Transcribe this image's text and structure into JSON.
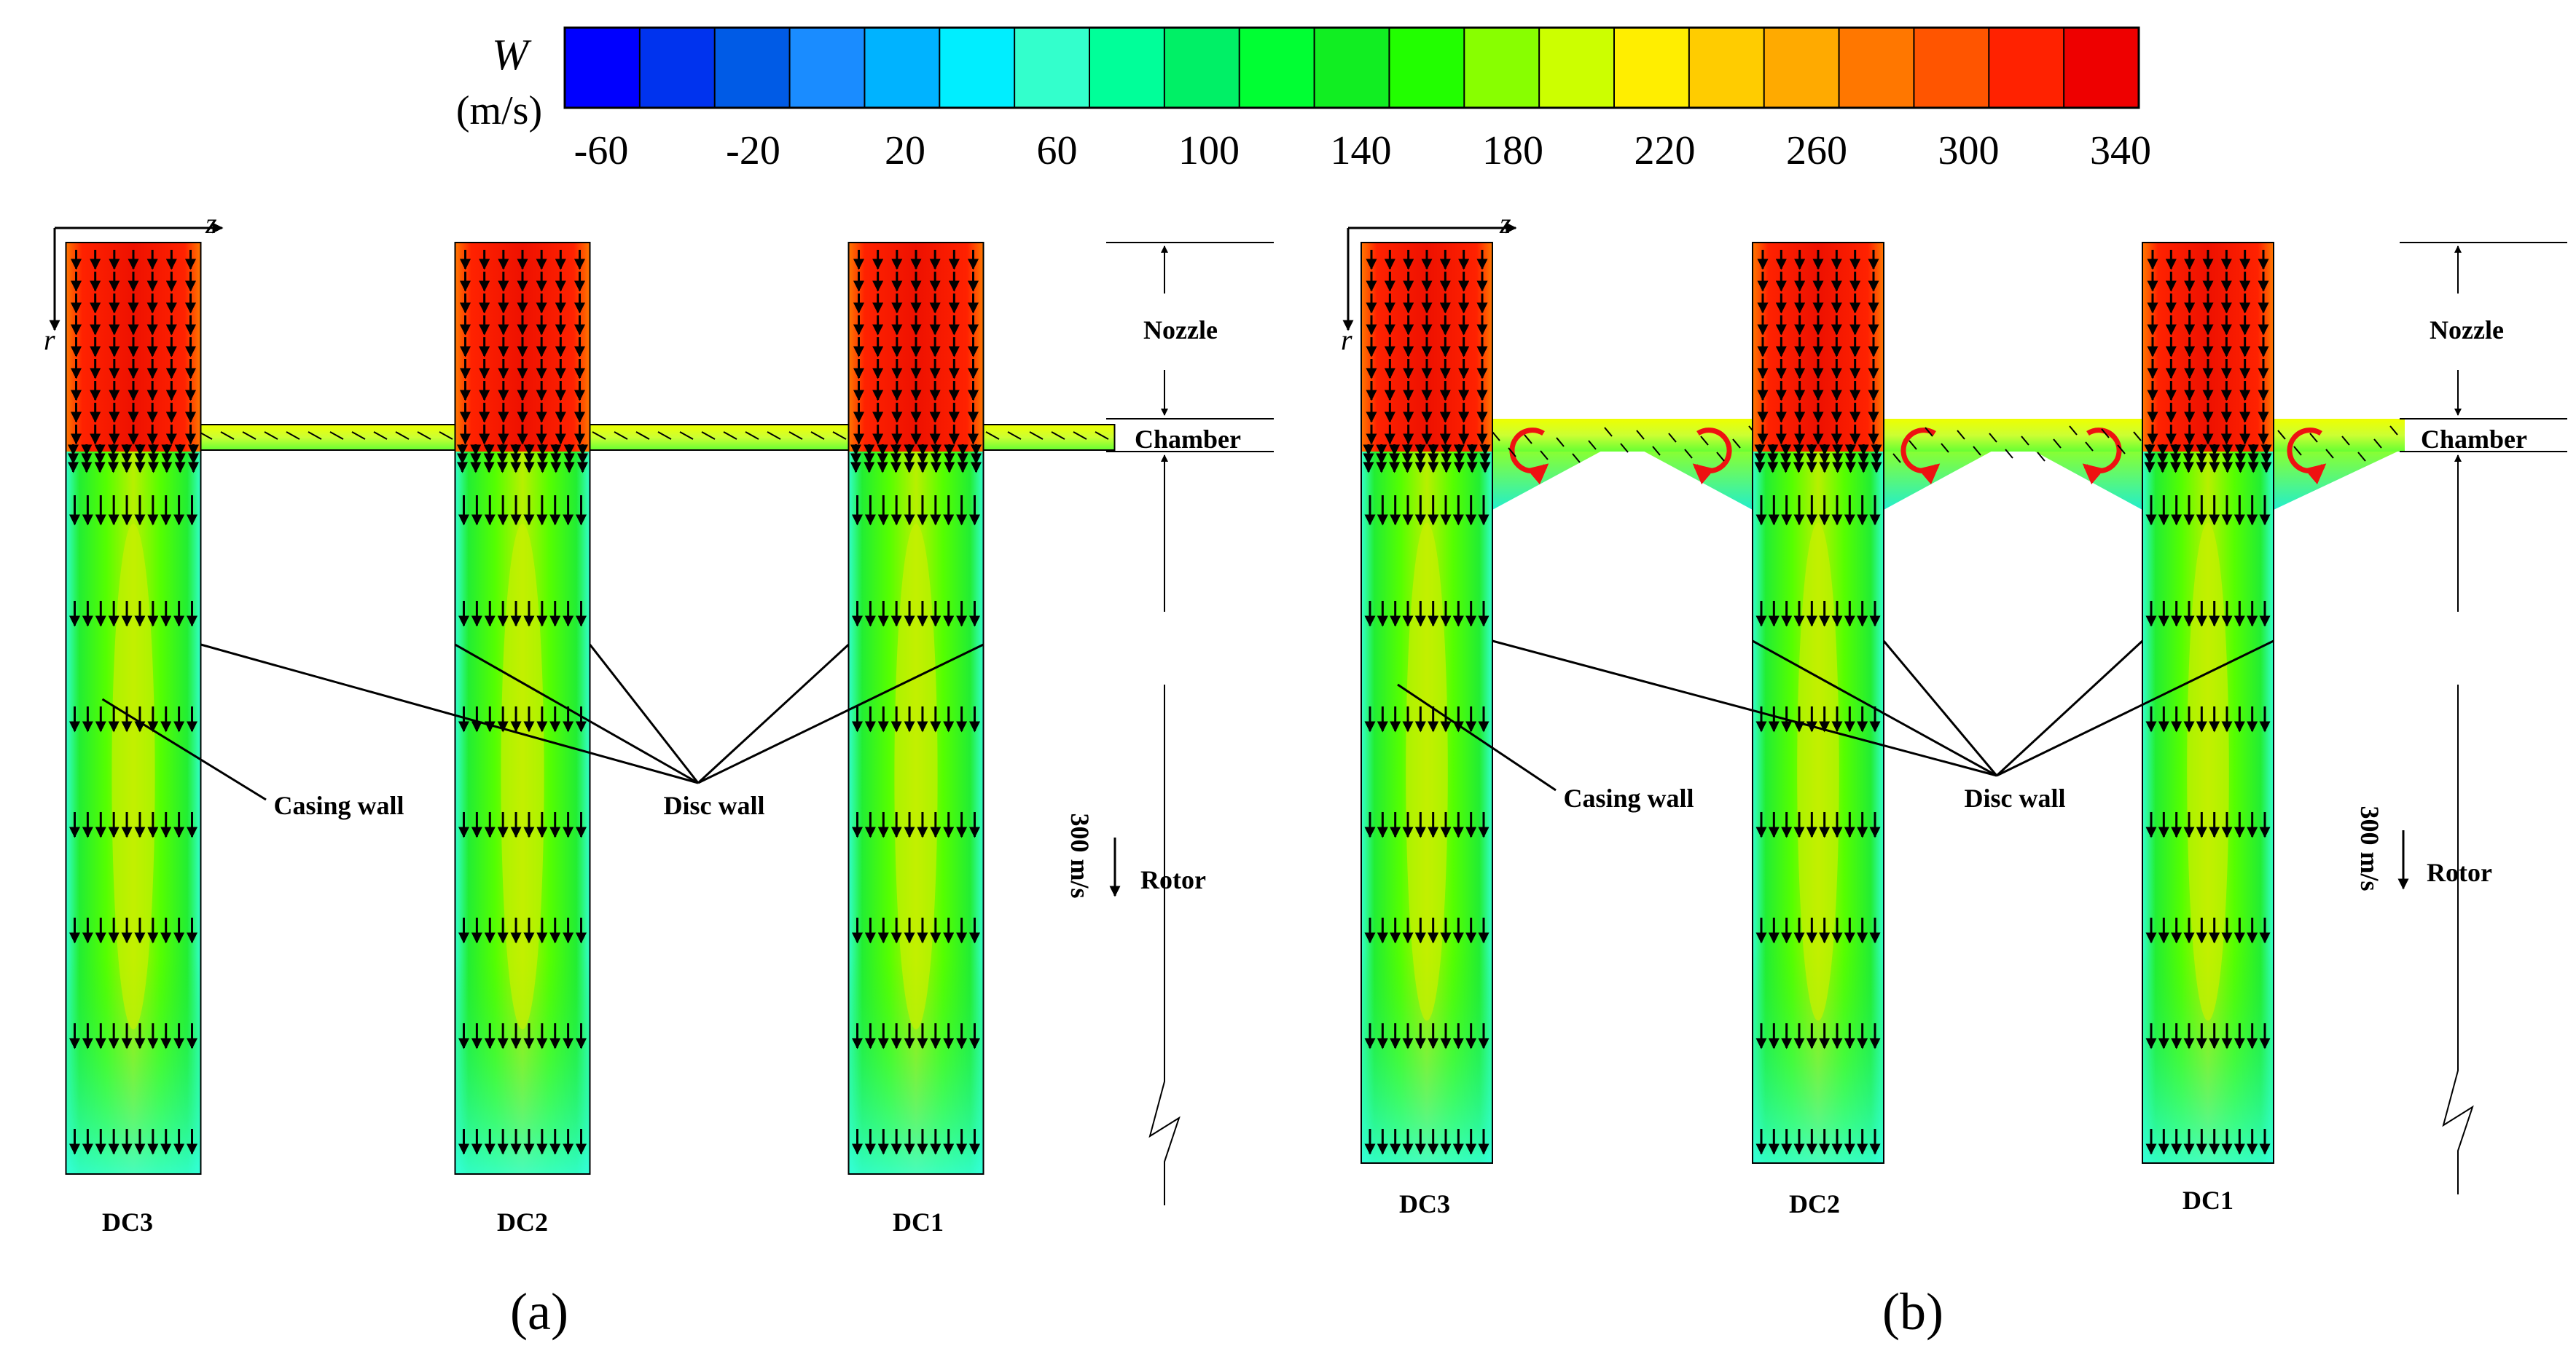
{
  "legend": {
    "symbol": "W",
    "unit": "(m/s)",
    "ticks": [
      "-60",
      "-20",
      "20",
      "60",
      "100",
      "140",
      "180",
      "220",
      "260",
      "300",
      "340"
    ],
    "colors": [
      "#0000ff",
      "#0033ee",
      "#005be6",
      "#1a8cff",
      "#00b3ff",
      "#00eeff",
      "#33ffcc",
      "#00ff99",
      "#00f066",
      "#00ff33",
      "#11ee22",
      "#22ff00",
      "#88ff00",
      "#ccff00",
      "#ffee00",
      "#ffcc00",
      "#ffaa00",
      "#ff7700",
      "#ff5500",
      "#ff2200",
      "#ee0000"
    ]
  },
  "axes": {
    "z": "z",
    "r": "r"
  },
  "panels": [
    {
      "id": "a",
      "caption": "(a)",
      "discs": [
        "DC3",
        "DC2",
        "DC1"
      ],
      "labels": {
        "casing": "Casing wall",
        "disc": "Disc wall"
      },
      "scale": {
        "nozzle": "Nozzle",
        "chamber": "Chamber",
        "rotor": "Rotor",
        "vector": "300 m/s"
      }
    },
    {
      "id": "b",
      "caption": "(b)",
      "discs": [
        "DC3",
        "DC2",
        "DC1"
      ],
      "labels": {
        "casing": "Casing wall",
        "disc": "Disc wall"
      },
      "scale": {
        "nozzle": "Nozzle",
        "chamber": "Chamber",
        "rotor": "Rotor",
        "vector": "300 m/s"
      }
    }
  ],
  "colors": {
    "nozzle_red": "#ee2200",
    "chamber_yellow": "#ccff33",
    "rotor_green": "#22ee22",
    "rotor_core": "#b8f000",
    "rotor_edge": "#33ffdd",
    "vortex": "#ee1111",
    "arrow": "#000000"
  }
}
